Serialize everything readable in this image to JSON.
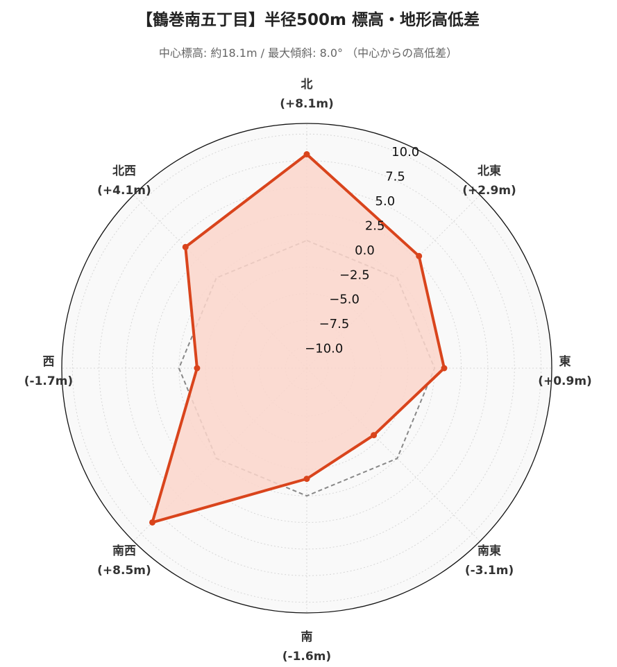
{
  "title": "【鶴巻南五丁目】半径500m 標高・地形高低差",
  "subtitle": "中心標高: 約18.1m / 最大傾斜: 8.0° （中心からの高低差）",
  "chart_data": {
    "type": "radar",
    "categories": [
      "北",
      "北東",
      "東",
      "南東",
      "南",
      "南西",
      "西",
      "北西"
    ],
    "category_value_labels": [
      "(+8.1m)",
      "(+2.9m)",
      "(+0.9m)",
      "(-3.1m)",
      "(-1.6m)",
      "(+8.5m)",
      "(-1.7m)",
      "(+4.1m)"
    ],
    "series": [
      {
        "values": [
          8.1,
          2.9,
          0.9,
          -3.1,
          -1.6,
          8.5,
          -1.7,
          4.1
        ],
        "color": "#d9441c",
        "fill": "#fbd6cb",
        "style": "solid"
      },
      {
        "values": [
          0,
          0,
          0,
          0,
          0,
          0,
          0,
          0
        ],
        "color": "#888888",
        "style": "dashed"
      }
    ],
    "rlim": [
      -12,
      11
    ],
    "rticks": [
      -10.0,
      -7.5,
      -5.0,
      -2.5,
      0.0,
      2.5,
      5.0,
      7.5,
      10.0
    ],
    "rtick_labels": [
      "−10.0",
      "−7.5",
      "−5.0",
      "−2.5",
      "0.0",
      "2.5",
      "5.0",
      "7.5",
      "10.0"
    ],
    "grid": true,
    "background": "#f9f9f9"
  }
}
